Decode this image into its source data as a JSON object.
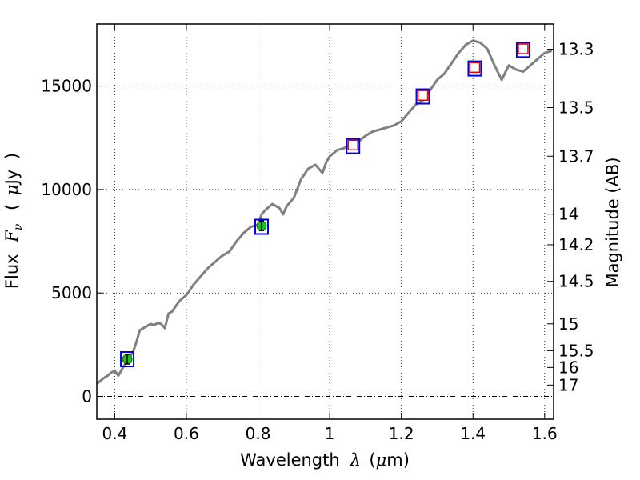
{
  "chart_data": {
    "type": "line",
    "xlabel": "Wavelength",
    "xlabel_symbol": "λ",
    "xlabel_unit_prefix": "(",
    "xlabel_unit_mu": "μ",
    "xlabel_unit_rest": "m)",
    "ylabel_text": "Flux",
    "ylabel_symbol": "F",
    "ylabel_subscript": "ν",
    "ylabel_open": "(",
    "ylabel_mu": "μ",
    "ylabel_unit": "Jy",
    "ylabel_close": ")",
    "y2label": "Magnitude (AB)",
    "xlim": [
      0.35,
      1.625
    ],
    "ylim": [
      -1100,
      18000
    ],
    "grid": true,
    "x_ticks": [
      0.4,
      0.6,
      0.8,
      1.0,
      1.2,
      1.4,
      1.6
    ],
    "x_tick_labels": [
      "0.4",
      "0.6",
      "0.8",
      "1",
      "1.2",
      "1.4",
      "1.6"
    ],
    "y_ticks": [
      0,
      5000,
      10000,
      15000
    ],
    "y_tick_labels": [
      "0",
      "5000",
      "10000",
      "15000"
    ],
    "y2_ticks": [
      {
        "label": "13.3",
        "flux": 16780
      },
      {
        "label": "13.5",
        "flux": 13960
      },
      {
        "label": "13.7",
        "flux": 11610
      },
      {
        "label": "14",
        "flux": 8810
      },
      {
        "label": "14.2",
        "flux": 7330
      },
      {
        "label": "14.5",
        "flux": 5560
      },
      {
        "label": "15",
        "flux": 3510
      },
      {
        "label": "15.5",
        "flux": 2210
      },
      {
        "label": "16",
        "flux": 1400
      },
      {
        "label": "17",
        "flux": 550
      }
    ],
    "series": [
      {
        "name": "spectrum",
        "color": "#808080",
        "x": [
          0.35,
          0.36,
          0.37,
          0.38,
          0.39,
          0.4,
          0.41,
          0.42,
          0.43,
          0.44,
          0.45,
          0.46,
          0.47,
          0.48,
          0.49,
          0.5,
          0.51,
          0.52,
          0.53,
          0.54,
          0.55,
          0.56,
          0.58,
          0.6,
          0.62,
          0.64,
          0.66,
          0.68,
          0.7,
          0.72,
          0.74,
          0.76,
          0.78,
          0.8,
          0.81,
          0.82,
          0.84,
          0.86,
          0.87,
          0.88,
          0.9,
          0.92,
          0.94,
          0.96,
          0.98,
          0.99,
          1.0,
          1.02,
          1.04,
          1.06,
          1.08,
          1.1,
          1.12,
          1.14,
          1.16,
          1.18,
          1.2,
          1.22,
          1.24,
          1.26,
          1.28,
          1.3,
          1.32,
          1.34,
          1.36,
          1.38,
          1.4,
          1.42,
          1.44,
          1.46,
          1.48,
          1.5,
          1.52,
          1.54,
          1.56,
          1.58,
          1.6,
          1.62
        ],
        "y": [
          600,
          750,
          900,
          1000,
          1150,
          1250,
          1000,
          1300,
          1600,
          1850,
          2100,
          2600,
          3200,
          3300,
          3400,
          3500,
          3450,
          3550,
          3500,
          3300,
          4000,
          4100,
          4600,
          4900,
          5400,
          5800,
          6200,
          6500,
          6800,
          7000,
          7500,
          7900,
          8200,
          8300,
          8800,
          9000,
          9300,
          9100,
          8800,
          9200,
          9600,
          10500,
          11000,
          11200,
          10800,
          11300,
          11600,
          11900,
          12000,
          12200,
          12300,
          12600,
          12800,
          12900,
          13000,
          13100,
          13300,
          13700,
          14100,
          14300,
          14800,
          15300,
          15600,
          16100,
          16600,
          17000,
          17200,
          17100,
          16800,
          16000,
          15300,
          16000,
          15800,
          15700,
          16000,
          16300,
          16600,
          16700
        ]
      },
      {
        "name": "photometry",
        "points": [
          {
            "x": 0.435,
            "y": 1800,
            "model": 1800,
            "fill": "#22bb22",
            "shape": "circle"
          },
          {
            "x": 0.81,
            "y": 8250,
            "model": 8200,
            "fill": "#22bb22",
            "shape": "circle"
          },
          {
            "x": 1.065,
            "y": 12150,
            "model": 12100,
            "fill": "#ffffff",
            "shape": "square"
          },
          {
            "x": 1.26,
            "y": 14550,
            "model": 14500,
            "fill": "#ffffff",
            "shape": "square"
          },
          {
            "x": 1.405,
            "y": 15900,
            "model": 15850,
            "fill": "#ffffff",
            "shape": "square"
          },
          {
            "x": 1.54,
            "y": 16800,
            "model": 16750,
            "fill": "#ffffff",
            "shape": "square"
          }
        ]
      }
    ]
  }
}
